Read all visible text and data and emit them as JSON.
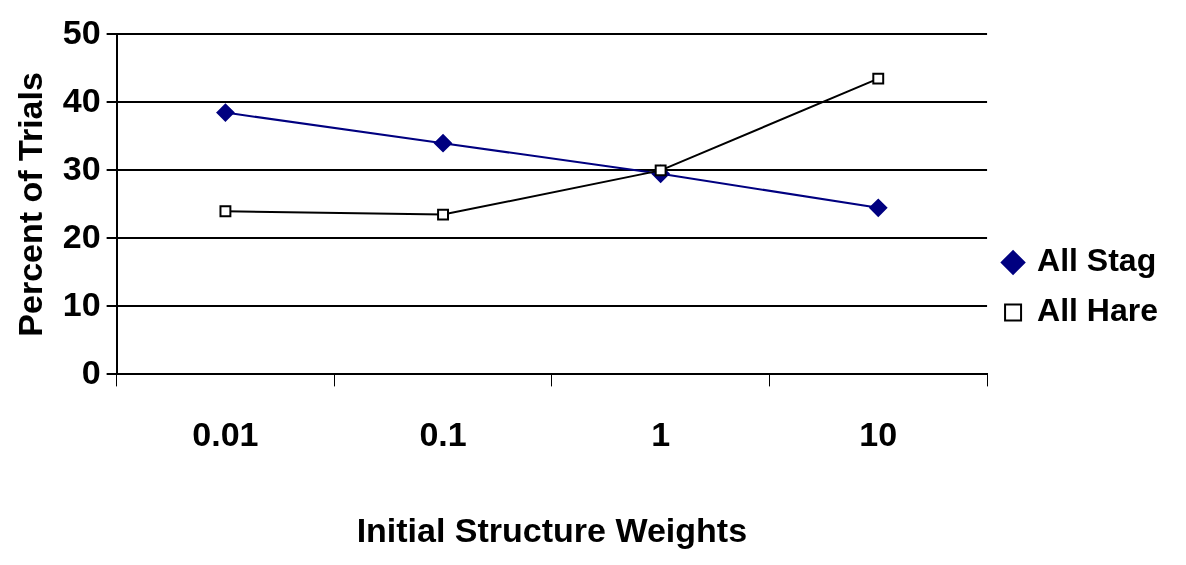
{
  "chart_data": {
    "type": "line",
    "xlabel": "Initial Structure Weights",
    "ylabel": "Percent of Trials",
    "categories": [
      "0.01",
      "0.1",
      "1",
      "10"
    ],
    "series": [
      {
        "name": "All Stag",
        "color": "#000080",
        "values": [
          38.5,
          34,
          29.5,
          24.5
        ],
        "marker": "diamond"
      },
      {
        "name": "All Hare",
        "color": "#000000",
        "values": [
          24,
          23.5,
          30,
          43.5
        ],
        "marker": "square"
      }
    ],
    "ylim": [
      0,
      50
    ],
    "yticks": [
      0,
      10,
      20,
      30,
      40,
      50
    ],
    "grid": "y",
    "legend": "right",
    "line_style": "solid"
  }
}
